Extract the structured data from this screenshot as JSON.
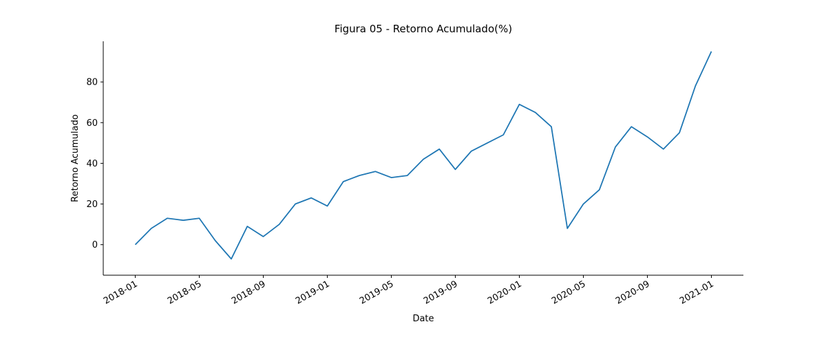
{
  "chart_data": {
    "type": "line",
    "title": "Figura 05 - Retorno Acumulado(%)",
    "x_label": "Date",
    "y_label": "Retorno Acumulado",
    "x": [
      "2018-01",
      "2018-02",
      "2018-03",
      "2018-04",
      "2018-05",
      "2018-06",
      "2018-07",
      "2018-08",
      "2018-09",
      "2018-10",
      "2018-11",
      "2018-12",
      "2019-01",
      "2019-02",
      "2019-03",
      "2019-04",
      "2019-05",
      "2019-06",
      "2019-07",
      "2019-08",
      "2019-09",
      "2019-10",
      "2019-11",
      "2019-12",
      "2020-01",
      "2020-02",
      "2020-03",
      "2020-04",
      "2020-05",
      "2020-06",
      "2020-07",
      "2020-08",
      "2020-09",
      "2020-10",
      "2020-11",
      "2020-12",
      "2021-01"
    ],
    "series": [
      {
        "color": "#1f77b4",
        "values": [
          0,
          8,
          13,
          12,
          13,
          2,
          -7,
          9,
          4,
          10,
          20,
          23,
          19,
          31,
          34,
          36,
          33,
          34,
          42,
          47,
          37,
          46,
          50,
          54,
          69,
          65,
          58,
          8,
          20,
          27,
          48,
          58,
          53,
          47,
          55,
          78,
          95
        ]
      }
    ],
    "xlim": [
      "2017-11",
      "2021-03"
    ],
    "xticks": [
      "2018-01",
      "2018-05",
      "2018-09",
      "2019-01",
      "2019-05",
      "2019-09",
      "2020-01",
      "2020-05",
      "2020-09",
      "2021-01"
    ],
    "ylim": [
      -15,
      100
    ],
    "yticks": [
      0,
      20,
      40,
      60,
      80
    ]
  }
}
